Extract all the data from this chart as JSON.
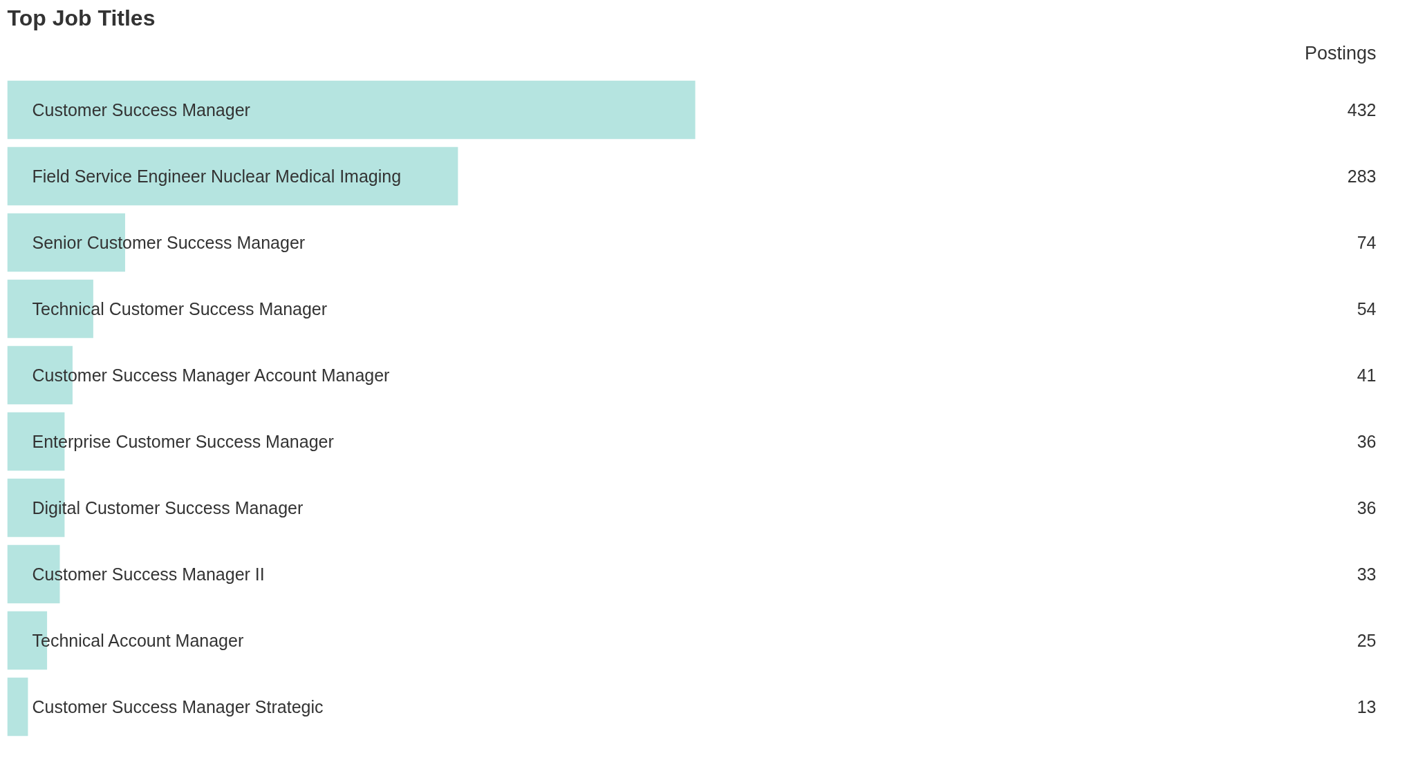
{
  "chart_data": {
    "type": "bar",
    "orientation": "horizontal",
    "title": "Top Job Titles",
    "categories": [
      "Customer Success Manager",
      "Field Service Engineer Nuclear Medical Imaging",
      "Senior Customer Success Manager",
      "Technical Customer Success Manager",
      "Customer Success Manager Account Manager",
      "Enterprise Customer Success Manager",
      "Digital Customer Success Manager",
      "Customer Success Manager II",
      "Technical Account Manager",
      "Customer Success Manager Strategic"
    ],
    "values": [
      432,
      283,
      74,
      54,
      41,
      36,
      36,
      33,
      25,
      13
    ],
    "color": "#b5e4e0",
    "data_labels": true,
    "tick_labels": false,
    "grid": false,
    "annotations": [
      "Postings"
    ]
  }
}
